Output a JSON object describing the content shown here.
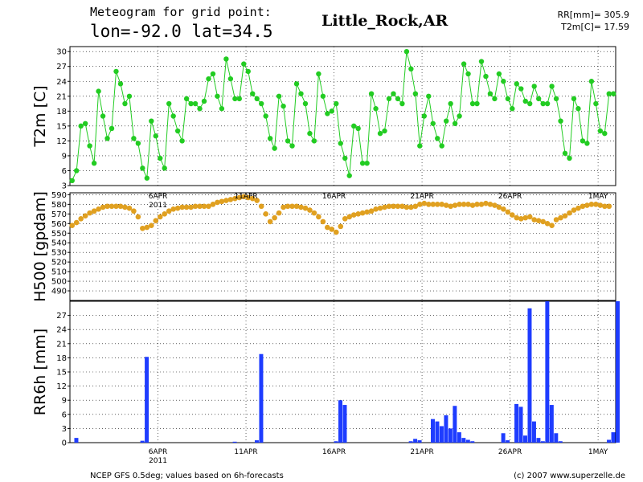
{
  "header": {
    "line1": "Meteogram for grid point:",
    "line2": "lon=-92.0  lat=34.5",
    "location": "Little_Rock,AR",
    "stat1": "RR[mm]=  305.9",
    "stat2": "T2m[C]= 17.59"
  },
  "footer": {
    "left": "NCEP GFS 0.5deg; values based on 6h-forecasts",
    "right": "(c) 2007 www.superzelle.de"
  },
  "date_axis": {
    "labels": [
      "6APR",
      "11APR",
      "16APR",
      "21APR",
      "26APR",
      "1MAY"
    ],
    "year": "2011"
  },
  "colors": {
    "t2m": "#22cc22",
    "h500": "#e0a020",
    "rr": "#1e3cff",
    "frame": "#000000",
    "grid": "#000000"
  },
  "chart_data": [
    {
      "type": "line",
      "ylabel": "T2m [C]",
      "ylim": [
        3,
        31
      ],
      "yticks": [
        3,
        6,
        9,
        12,
        15,
        18,
        21,
        24,
        27,
        30
      ],
      "series": [
        {
          "values": [
            4,
            6,
            15,
            15.5,
            11,
            7.5,
            22,
            17,
            12.5,
            14.5,
            26,
            23.5,
            19.5,
            21,
            12.5,
            11.5,
            6.5,
            4.5,
            16,
            13,
            8.5,
            6.5,
            19.5,
            17,
            14,
            12,
            20.5,
            19.5,
            19.5,
            18.5,
            20,
            24.5,
            25.5,
            21,
            18.5,
            28.5,
            24.5,
            20.5,
            20.5,
            27.5,
            26,
            21.5,
            20.5,
            19.5,
            17,
            12.5,
            10.5,
            21,
            19,
            12,
            11,
            23.5,
            21.5,
            19.5,
            13.5,
            12,
            25.5,
            21,
            17.5,
            18,
            19.5,
            11.5,
            8.5,
            5,
            15,
            14.5,
            7.5,
            7.5,
            21.5,
            18.5,
            13.5,
            14,
            20.5,
            21.5,
            20.5,
            19.5,
            30,
            26.5,
            21.5,
            11,
            17,
            21,
            15.5,
            12.5,
            11,
            16,
            19.5,
            15.5,
            17,
            27.5,
            25.5,
            19.5,
            19.5,
            28,
            25,
            21.5,
            20.5,
            25.5,
            24,
            20.5,
            18.5,
            23.5,
            22.5,
            20,
            19.5,
            23,
            20.5,
            19.5,
            19.5,
            23,
            20.5,
            16,
            9.5,
            8.5,
            20.5,
            18.5,
            12,
            11.5,
            24,
            19.5,
            14,
            13.5,
            21.5,
            21.5
          ]
        }
      ]
    },
    {
      "type": "scatter",
      "ylabel": "H500 [gpdam]",
      "ylim": [
        480,
        592
      ],
      "yticks": [
        490,
        500,
        510,
        520,
        530,
        540,
        550,
        560,
        570,
        580,
        590
      ],
      "series": [
        {
          "values": [
            558,
            561,
            565,
            568,
            571,
            573,
            575,
            577,
            578,
            578,
            578,
            578,
            577,
            576,
            573,
            567,
            555,
            556,
            558,
            563,
            567,
            570,
            573,
            575,
            576,
            577,
            577,
            577,
            578,
            578,
            578,
            578,
            580,
            582,
            583,
            584,
            585,
            586,
            587,
            588,
            587,
            586,
            584,
            578,
            570,
            562,
            566,
            571,
            577,
            578,
            578,
            578,
            577,
            576,
            574,
            571,
            567,
            562,
            556,
            554,
            551,
            557,
            565,
            567,
            569,
            570,
            571,
            572,
            573,
            575,
            576,
            577,
            578,
            578,
            578,
            578,
            577,
            577,
            578,
            580,
            581,
            580,
            580,
            580,
            580,
            579,
            578,
            579,
            580,
            580,
            580,
            579,
            580,
            580,
            581,
            580,
            579,
            577,
            575,
            572,
            569,
            566,
            565,
            566,
            567,
            564,
            563,
            562,
            560,
            558,
            564,
            566,
            568,
            571,
            574,
            576,
            578,
            579,
            580,
            580,
            579,
            578,
            578
          ]
        }
      ]
    },
    {
      "type": "bar",
      "ylabel": "RR6h [mm]",
      "ylim": [
        0,
        30
      ],
      "yticks": [
        0,
        3,
        6,
        9,
        12,
        15,
        18,
        21,
        24,
        27
      ],
      "bars": [
        {
          "i": 1,
          "v": 1
        },
        {
          "i": 16,
          "v": 0.4
        },
        {
          "i": 17,
          "v": 18.2
        },
        {
          "i": 37,
          "v": 0.2
        },
        {
          "i": 42,
          "v": 0.5
        },
        {
          "i": 43,
          "v": 18.8
        },
        {
          "i": 60,
          "v": 0.3
        },
        {
          "i": 61,
          "v": 9
        },
        {
          "i": 62,
          "v": 8
        },
        {
          "i": 77,
          "v": 0.3
        },
        {
          "i": 78,
          "v": 0.8
        },
        {
          "i": 79,
          "v": 0.5
        },
        {
          "i": 82,
          "v": 5
        },
        {
          "i": 83,
          "v": 4.5
        },
        {
          "i": 84,
          "v": 3.5
        },
        {
          "i": 85,
          "v": 5.8
        },
        {
          "i": 86,
          "v": 3
        },
        {
          "i": 87,
          "v": 7.8
        },
        {
          "i": 88,
          "v": 2.2
        },
        {
          "i": 89,
          "v": 1
        },
        {
          "i": 90,
          "v": 0.6
        },
        {
          "i": 91,
          "v": 0.3
        },
        {
          "i": 98,
          "v": 2
        },
        {
          "i": 99,
          "v": 0.5
        },
        {
          "i": 101,
          "v": 8.2
        },
        {
          "i": 102,
          "v": 7.6
        },
        {
          "i": 103,
          "v": 1.5
        },
        {
          "i": 104,
          "v": 28.5
        },
        {
          "i": 105,
          "v": 4.5
        },
        {
          "i": 106,
          "v": 1
        },
        {
          "i": 107,
          "v": 0.3
        },
        {
          "i": 108,
          "v": 30
        },
        {
          "i": 109,
          "v": 8
        },
        {
          "i": 110,
          "v": 2
        },
        {
          "i": 111,
          "v": 0.3
        },
        {
          "i": 122,
          "v": 0.6
        },
        {
          "i": 123,
          "v": 2.2
        },
        {
          "i": 124,
          "v": 30
        }
      ]
    }
  ]
}
